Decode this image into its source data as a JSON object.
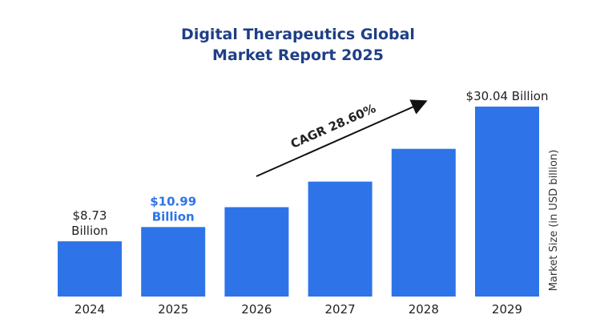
{
  "title_lines": [
    "Digital Therapeutics Global",
    "Market Report 2025"
  ],
  "colors": {
    "bar": "#2e74e8",
    "title": "#1f3f86",
    "text": "#222222",
    "highlight": "#2e74e8"
  },
  "chart_data": {
    "type": "bar",
    "title": "Digital Therapeutics Global Market Report 2025",
    "categories": [
      "2024",
      "2025",
      "2026",
      "2027",
      "2028",
      "2029"
    ],
    "values": [
      8.73,
      10.99,
      14.13,
      18.17,
      23.36,
      30.04
    ],
    "ylabel": "Market Size (in USD billion)",
    "ylim": [
      0,
      30.04
    ],
    "grid": false,
    "annotations": {
      "cagr": "CAGR 28.60%",
      "data_labels": [
        {
          "index": 0,
          "lines": [
            "$8.73",
            "Billion"
          ],
          "color": "#222222"
        },
        {
          "index": 1,
          "lines": [
            "$10.99",
            "Billion"
          ],
          "color": "#2e74e8"
        },
        {
          "index": 5,
          "lines": [
            "$30.04 Billion"
          ],
          "color": "#222222"
        }
      ]
    }
  }
}
